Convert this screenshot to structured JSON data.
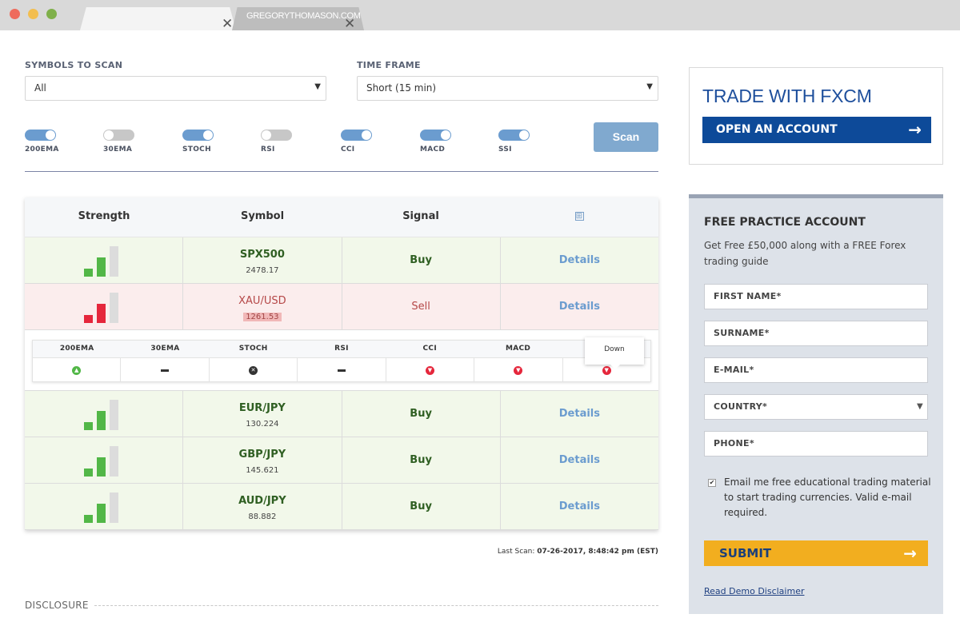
{
  "browser": {
    "tab2_title": "GREGORYTHOMASON.COM",
    "close_glyph": "✕"
  },
  "filters": {
    "symbols_label": "SYMBOLS TO SCAN",
    "symbols_value": "All",
    "timeframe_label": "TIME FRAME",
    "timeframe_value": "Short (15 min)",
    "toggles": [
      {
        "label": "200EMA",
        "on": true
      },
      {
        "label": "30EMA",
        "on": false
      },
      {
        "label": "STOCH",
        "on": true
      },
      {
        "label": "RSI",
        "on": false
      },
      {
        "label": "CCI",
        "on": true
      },
      {
        "label": "MACD",
        "on": true
      },
      {
        "label": "SSI",
        "on": true
      }
    ],
    "scan_label": "Scan"
  },
  "table": {
    "headers": [
      "Strength",
      "Symbol",
      "Signal"
    ],
    "expand_glyph": "⊞",
    "details_label": "Details",
    "rows": [
      {
        "symbol": "SPX500",
        "price": "2478.17",
        "signal": "Buy",
        "type": "buy"
      },
      {
        "symbol": "XAU/USD",
        "price": "1261.53",
        "signal": "Sell",
        "type": "sell"
      },
      {
        "symbol": "EUR/JPY",
        "price": "130.224",
        "signal": "Buy",
        "type": "buy"
      },
      {
        "symbol": "GBP/JPY",
        "price": "145.621",
        "signal": "Buy",
        "type": "buy"
      },
      {
        "symbol": "AUD/JPY",
        "price": "88.882",
        "signal": "Buy",
        "type": "buy"
      }
    ],
    "indicators": {
      "headers": [
        "200EMA",
        "30EMA",
        "STOCH",
        "RSI",
        "CCI",
        "MACD",
        ""
      ],
      "values": [
        "up",
        "dash",
        "x",
        "dash",
        "down",
        "down",
        "down"
      ],
      "tooltip": "Down"
    }
  },
  "last_scan": {
    "label": "Last Scan:",
    "value": "07-26-2017, 8:48:42 pm (EST)"
  },
  "disclosure": "DISCLOSURE",
  "fxcm": {
    "title": "TRADE WITH FXCM",
    "open_label": "OPEN AN ACCOUNT",
    "arrow": "→"
  },
  "practice": {
    "title": "FREE PRACTICE ACCOUNT",
    "subtitle": "Get Free £50,000 along with a FREE Forex trading guide",
    "fields": [
      "FIRST NAME*",
      "SURNAME*",
      "E-MAIL*",
      "COUNTRY*",
      "PHONE*"
    ],
    "checkbox_text": "Email me free educational trading material to start trading currencies. Valid e-mail required.",
    "submit_label": "SUBMIT",
    "disclaimer": "Read Demo Disclaimer"
  },
  "colors": {
    "accent": "#6b9ccf",
    "fxcm_blue": "#0d4a99",
    "buy_green": "#52b747",
    "sell_red": "#e5273c",
    "submit_yellow": "#f2ae1f"
  }
}
